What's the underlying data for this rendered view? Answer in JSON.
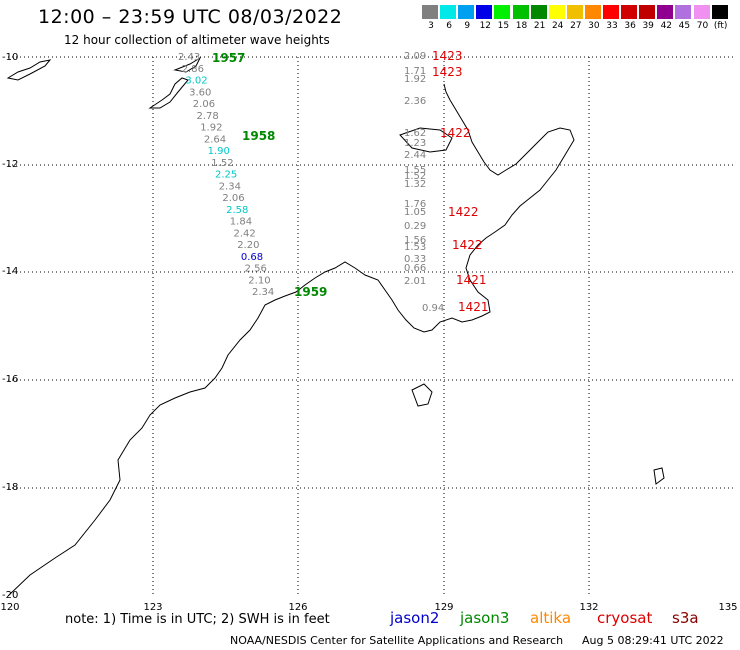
{
  "title": "12:00 – 23:59 UTC 08/03/2022",
  "subtitle": "12 hour collection of altimeter wave heights",
  "colorbar": {
    "colors": [
      "#808080",
      "#00e8e8",
      "#00a0f0",
      "#0000e8",
      "#00f000",
      "#00c000",
      "#008800",
      "#ffff00",
      "#f0c000",
      "#ff8800",
      "#ff0000",
      "#d00000",
      "#c00000",
      "#900090",
      "#b070e0",
      "#f090f0",
      "#000000"
    ],
    "labels": [
      "3",
      "6",
      "9",
      "12",
      "15",
      "18",
      "21",
      "24",
      "27",
      "30",
      "33",
      "36",
      "39",
      "42",
      "45",
      "70",
      "(ft)"
    ]
  },
  "lat_labels": [
    "-10",
    "-12",
    "-14",
    "-16",
    "-18",
    "-20"
  ],
  "lon_labels": [
    "120",
    "123",
    "126",
    "129",
    "132",
    "135"
  ],
  "note": "note: 1) Time is in UTC; 2) SWH is in feet",
  "satellites": [
    {
      "name": "jason2",
      "color": "#0000cc"
    },
    {
      "name": "jason3",
      "color": "#008800"
    },
    {
      "name": "altika",
      "color": "#ff8800"
    },
    {
      "name": "cryosat",
      "color": "#dd0000"
    },
    {
      "name": "s3a",
      "color": "#880000"
    }
  ],
  "footer": "NOAA/NESDIS Center for Satellite Applications and Research",
  "footer_time": "Aug  5 08:29:41 UTC 2022",
  "track_west": {
    "values": [
      "2.43",
      "2.86",
      "3.02",
      "3.60",
      "2.06",
      "2.78",
      "1.92",
      "2.64",
      "1.90",
      "1.52",
      "2.25",
      "2.34",
      "2.06",
      "2.58",
      "1.84",
      "2.42",
      "2.20",
      "0.68",
      "2.56",
      "2.10",
      "2.34"
    ],
    "colors": [
      "#808080",
      "#808080",
      "#00c8c8",
      "#808080",
      "#808080",
      "#808080",
      "#808080",
      "#808080",
      "#00c8c8",
      "#808080",
      "#00c8c8",
      "#808080",
      "#808080",
      "#00c8c8",
      "#808080",
      "#808080",
      "#808080",
      "#0000cc",
      "#808080",
      "#808080",
      "#808080"
    ],
    "times": [
      "1957",
      "1958",
      "1959"
    ]
  },
  "track_east": {
    "values": [
      "2.09",
      "1.71",
      "1.92",
      "2.36",
      "1.62",
      "1.23",
      "2.44",
      "1.55",
      "1.52",
      "1.32",
      "1.76",
      "1.05",
      "0.29",
      "1.56",
      "1.53",
      "0.33",
      "0.66",
      "2.01",
      "0.94"
    ],
    "times": [
      "1423",
      "1423",
      "1422",
      "1422",
      "1422",
      "1421",
      "1421"
    ]
  }
}
